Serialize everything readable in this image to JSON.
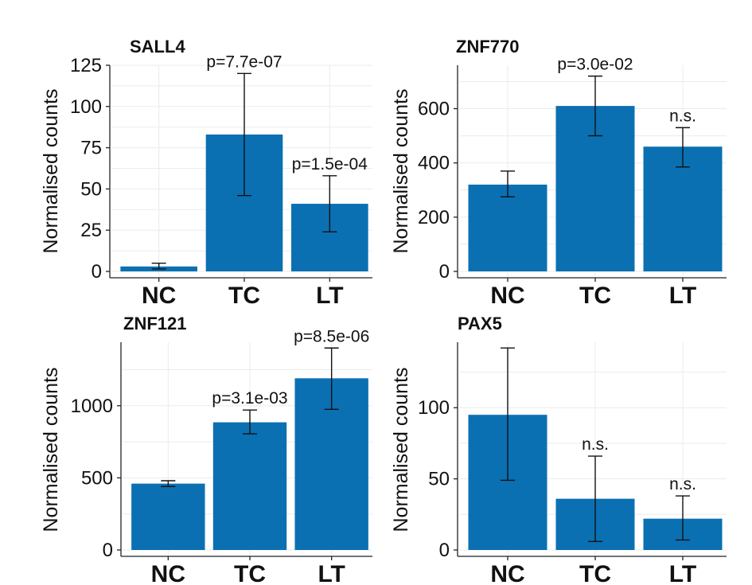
{
  "chart_data": [
    {
      "type": "bar",
      "title": "SALL4",
      "ylabel": "Normalised counts",
      "categories": [
        "NC",
        "TC",
        "LT"
      ],
      "values": [
        3,
        83,
        41
      ],
      "error_low": [
        1.5,
        46,
        24
      ],
      "error_high": [
        5,
        120,
        58
      ],
      "annotations": [
        "",
        "p=7.7e-07",
        "p=1.5e-04"
      ],
      "ylim": [
        0,
        125
      ],
      "yticks": [
        0,
        25,
        50,
        75,
        100,
        125
      ],
      "color": "#0a70b2",
      "grid": true
    },
    {
      "type": "bar",
      "title": "ZNF770",
      "ylabel": "Normalised counts",
      "categories": [
        "NC",
        "TC",
        "LT"
      ],
      "values": [
        320,
        610,
        460
      ],
      "error_low": [
        275,
        500,
        385
      ],
      "error_high": [
        370,
        720,
        530
      ],
      "annotations": [
        "",
        "p=3.0e-02",
        "n.s."
      ],
      "ylim": [
        0,
        760
      ],
      "yticks": [
        0,
        200,
        400,
        600
      ],
      "color": "#0a70b2",
      "grid": true
    },
    {
      "type": "bar",
      "title": "ZNF121",
      "ylabel": "Normalised counts",
      "categories": [
        "NC",
        "TC",
        "LT"
      ],
      "values": [
        460,
        885,
        1190
      ],
      "error_low": [
        440,
        805,
        975
      ],
      "error_high": [
        480,
        970,
        1400
      ],
      "annotations": [
        "",
        "p=3.1e-03",
        "p=8.5e-06"
      ],
      "ylim": [
        0,
        1440
      ],
      "yticks": [
        0,
        500,
        1000
      ],
      "color": "#0a70b2",
      "grid": true
    },
    {
      "type": "bar",
      "title": "PAX5",
      "ylabel": "Normalised counts",
      "categories": [
        "NC",
        "TC",
        "LT"
      ],
      "values": [
        95,
        36,
        22
      ],
      "error_low": [
        49,
        6,
        7
      ],
      "error_high": [
        142,
        66,
        38
      ],
      "annotations": [
        "",
        "n.s.",
        "n.s."
      ],
      "ylim": [
        0,
        146
      ],
      "yticks": [
        0,
        50,
        100
      ],
      "color": "#0a70b2",
      "grid": true
    }
  ]
}
